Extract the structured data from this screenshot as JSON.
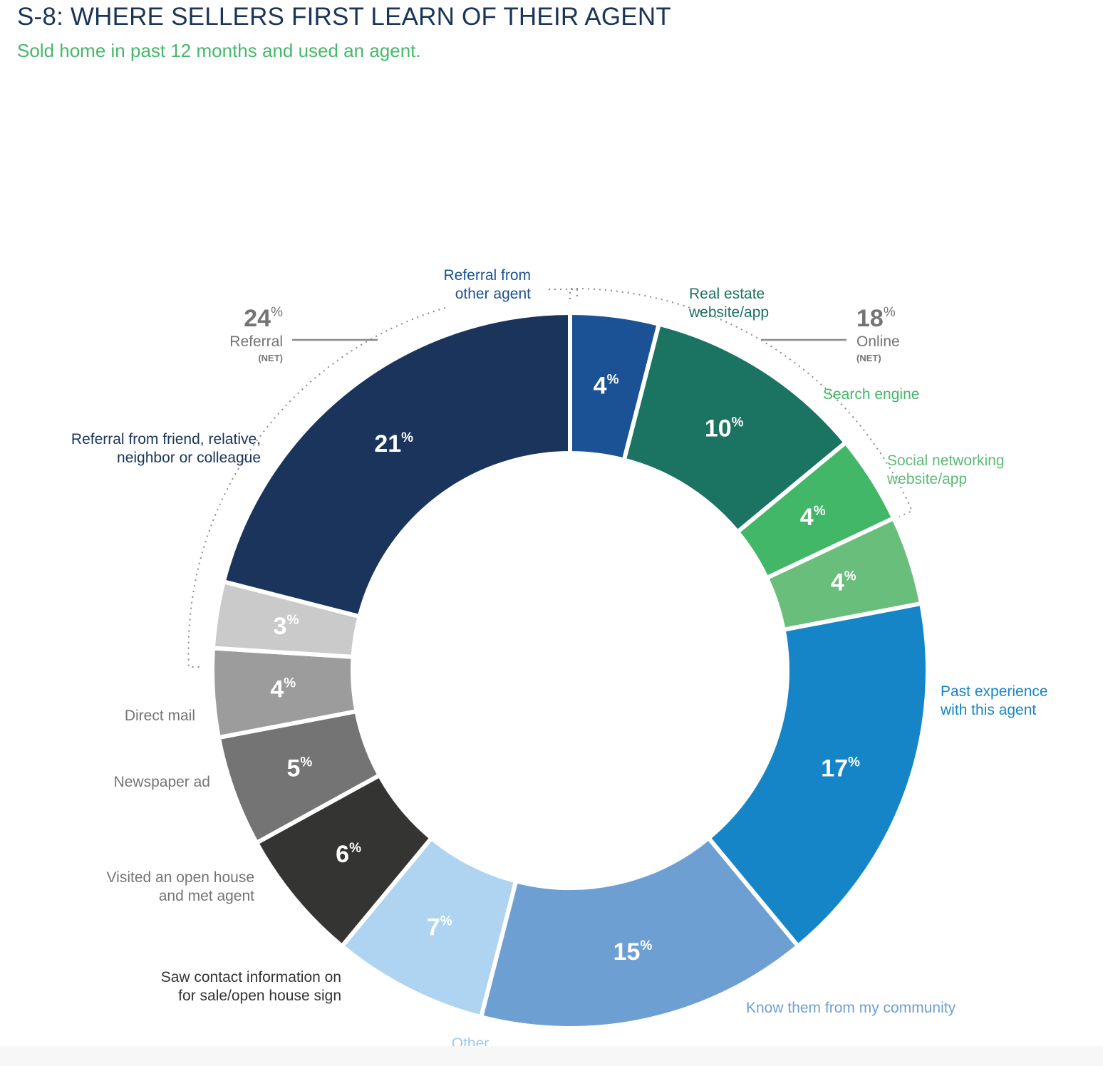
{
  "header": {
    "title": "S-8: WHERE SELLERS FIRST LEARN OF THEIR AGENT",
    "subtitle": "Sold home in past 12 months and used an agent."
  },
  "chart_data": {
    "type": "pie",
    "donut": true,
    "unit": "%",
    "slices": [
      {
        "label": [
          "Referral from",
          "other agent"
        ],
        "value": 4,
        "color": "#1b5295",
        "label_color": "#1b5295"
      },
      {
        "label": [
          "Real estate",
          "website/app"
        ],
        "value": 10,
        "color": "#1b7361",
        "label_color": "#1b7361"
      },
      {
        "label": [
          "Search engine"
        ],
        "value": 4,
        "color": "#41b767",
        "label_color": "#41b767"
      },
      {
        "label": [
          "Social networking",
          "website/app"
        ],
        "value": 4,
        "color": "#68be7a",
        "label_color": "#5dba75"
      },
      {
        "label": [
          "Past experience",
          "with this agent"
        ],
        "value": 17,
        "color": "#1685c8",
        "label_color": "#1685c8"
      },
      {
        "label": [
          "Know them from my community"
        ],
        "value": 15,
        "color": "#6e9fd2",
        "label_color": "#6e9fd2"
      },
      {
        "label": [
          "Other"
        ],
        "value": 7,
        "color": "#aed4f1",
        "label_color": "#9ccbee"
      },
      {
        "label": [
          "Saw contact information on",
          "for sale/open house sign"
        ],
        "value": 6,
        "color": "#343432",
        "label_color": "#343432"
      },
      {
        "label": [
          "Visited an open house",
          "and met agent"
        ],
        "value": 5,
        "color": "#747474",
        "label_color": "#747474"
      },
      {
        "label": [
          "Newspaper ad"
        ],
        "value": 4,
        "color": "#9c9c9c",
        "label_color": "#747474"
      },
      {
        "label": [
          "Direct mail"
        ],
        "value": 3,
        "color": "#cacaca",
        "label_color": "#747474"
      },
      {
        "label": [
          "Referral from friend, relative,",
          "neighbor or colleague"
        ],
        "value": 21,
        "color": "#1a345b",
        "label_color": "#1a345b"
      }
    ],
    "groups": [
      {
        "value": 24,
        "unit": "%",
        "label": "Referral",
        "sub": "(NET)",
        "color": "#747474"
      },
      {
        "value": 18,
        "unit": "%",
        "label": "Online",
        "sub": "(NET)",
        "color": "#747474"
      }
    ]
  }
}
